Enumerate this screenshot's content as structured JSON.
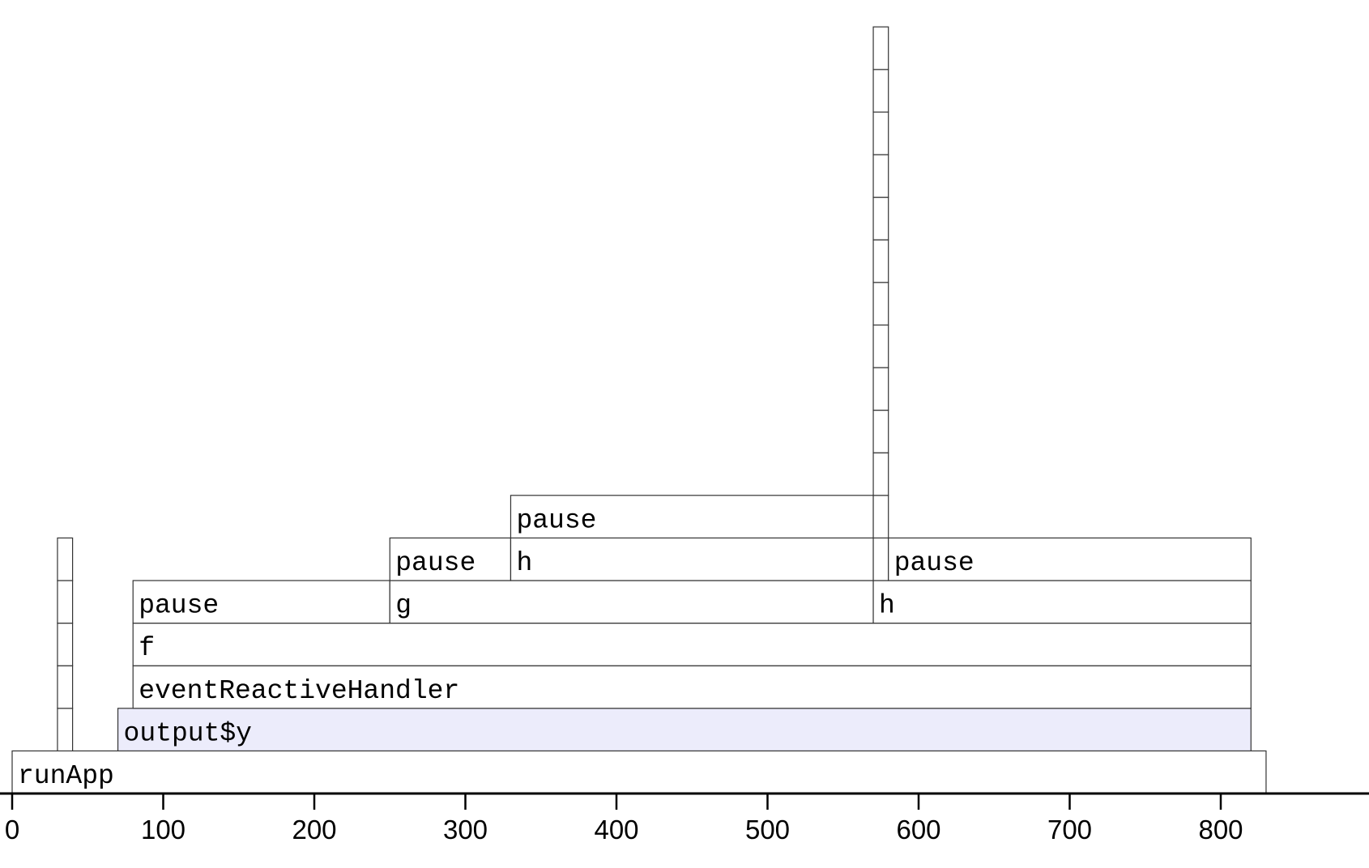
{
  "chart_data": {
    "type": "flame",
    "title": "",
    "xlabel": "",
    "ylabel": "",
    "xlim": [
      0,
      830
    ],
    "x_ticks": [
      0,
      100,
      200,
      300,
      400,
      500,
      600,
      700,
      800
    ],
    "colors": {
      "default_fill": "#ffffff",
      "highlight_fill": "#ececfb",
      "stroke": "#333333",
      "axis": "#000000"
    },
    "frames": [
      {
        "label": "runApp",
        "start": 0,
        "end": 830,
        "depth": 0
      },
      {
        "label": "",
        "start": 30,
        "end": 40,
        "depth": 1
      },
      {
        "label": "",
        "start": 30,
        "end": 40,
        "depth": 2
      },
      {
        "label": "",
        "start": 30,
        "end": 40,
        "depth": 3
      },
      {
        "label": "",
        "start": 30,
        "end": 40,
        "depth": 4
      },
      {
        "label": "",
        "start": 30,
        "end": 40,
        "depth": 5
      },
      {
        "label": "output$y",
        "start": 70,
        "end": 820,
        "depth": 1,
        "highlight": true
      },
      {
        "label": "eventReactiveHandler",
        "start": 80,
        "end": 820,
        "depth": 2
      },
      {
        "label": "f",
        "start": 80,
        "end": 820,
        "depth": 3
      },
      {
        "label": "pause",
        "start": 80,
        "end": 250,
        "depth": 4
      },
      {
        "label": "g",
        "start": 250,
        "end": 570,
        "depth": 4
      },
      {
        "label": "pause",
        "start": 250,
        "end": 330,
        "depth": 5
      },
      {
        "label": "h",
        "start": 330,
        "end": 570,
        "depth": 5
      },
      {
        "label": "pause",
        "start": 330,
        "end": 570,
        "depth": 6
      },
      {
        "label": "h",
        "start": 570,
        "end": 820,
        "depth": 4
      },
      {
        "label": "",
        "start": 570,
        "end": 580,
        "depth": 5
      },
      {
        "label": "pause",
        "start": 580,
        "end": 820,
        "depth": 5
      },
      {
        "label": "",
        "start": 570,
        "end": 580,
        "depth": 6
      },
      {
        "label": "",
        "start": 570,
        "end": 580,
        "depth": 7
      },
      {
        "label": "",
        "start": 570,
        "end": 580,
        "depth": 8
      },
      {
        "label": "",
        "start": 570,
        "end": 580,
        "depth": 9
      },
      {
        "label": "",
        "start": 570,
        "end": 580,
        "depth": 10
      },
      {
        "label": "",
        "start": 570,
        "end": 580,
        "depth": 11
      },
      {
        "label": "",
        "start": 570,
        "end": 580,
        "depth": 12
      },
      {
        "label": "",
        "start": 570,
        "end": 580,
        "depth": 13
      },
      {
        "label": "",
        "start": 570,
        "end": 580,
        "depth": 14
      },
      {
        "label": "",
        "start": 570,
        "end": 580,
        "depth": 15
      },
      {
        "label": "",
        "start": 570,
        "end": 580,
        "depth": 16
      },
      {
        "label": "",
        "start": 570,
        "end": 580,
        "depth": 17
      }
    ]
  }
}
